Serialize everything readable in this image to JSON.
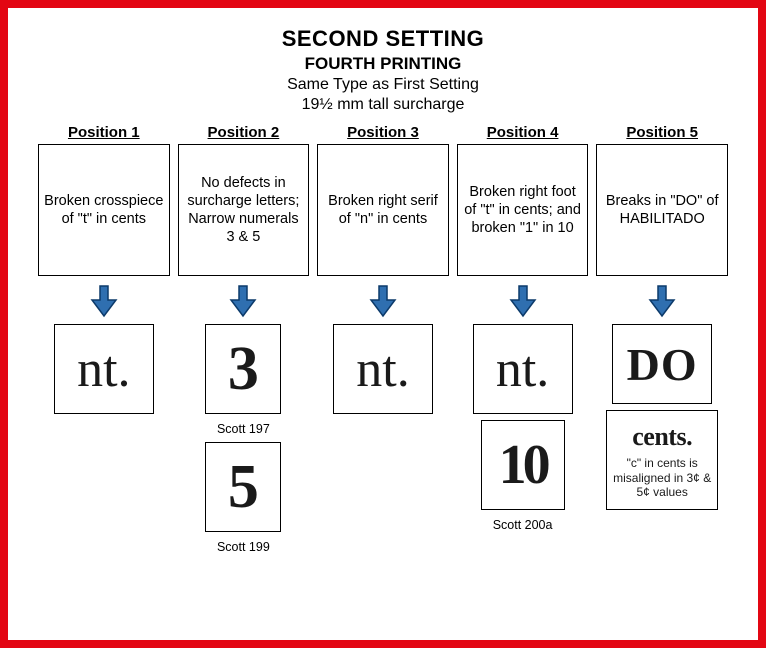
{
  "header": {
    "title": "SECOND SETTING",
    "subtitle": "FOURTH PRINTING",
    "line1": "Same Type as First Setting",
    "line2": "19½ mm tall surcharge"
  },
  "arrow": {
    "fill": "#2f6fb0",
    "stroke": "#0c3a6a",
    "width": 28,
    "height": 34
  },
  "columns": [
    {
      "label": "Position 1",
      "desc": "Broken crosspiece of \"t\" in cents",
      "specimens": [
        {
          "type": "nt",
          "text": "nt.",
          "caption": ""
        }
      ]
    },
    {
      "label": "Position 2",
      "desc": "No defects in surcharge letters; Narrow numerals 3 & 5",
      "specimens": [
        {
          "type": "num",
          "text": "3",
          "caption": "Scott 197"
        },
        {
          "type": "num",
          "text": "5",
          "caption": "Scott 199"
        }
      ]
    },
    {
      "label": "Position 3",
      "desc": "Broken right serif of \"n\" in cents",
      "specimens": [
        {
          "type": "nt",
          "text": "nt.",
          "caption": ""
        }
      ]
    },
    {
      "label": "Position 4",
      "desc": "Broken right foot of \"t\" in cents; and broken \"1\" in 10",
      "specimens": [
        {
          "type": "nt",
          "text": "nt.",
          "caption": ""
        },
        {
          "type": "ten",
          "text": "10",
          "caption": "Scott 200a"
        }
      ]
    },
    {
      "label": "Position 5",
      "desc": "Breaks in \"DO\" of HABILITADO",
      "specimens": [
        {
          "type": "do",
          "text": "DO",
          "caption": ""
        },
        {
          "type": "cents",
          "text": "cents.",
          "note": "\"c\" in cents is misaligned in 3¢ & 5¢ values",
          "caption": ""
        }
      ]
    }
  ]
}
